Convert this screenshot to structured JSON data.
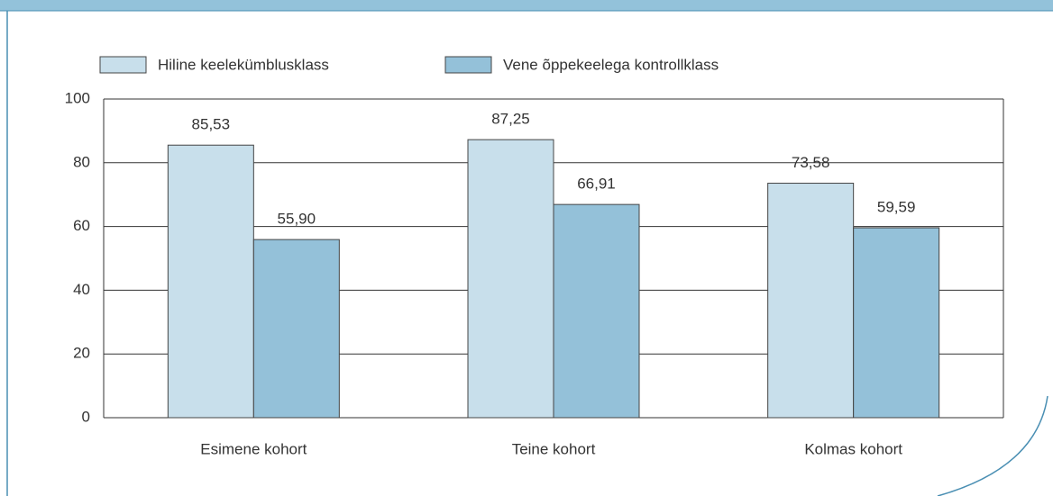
{
  "chart_data": {
    "type": "bar",
    "categories": [
      "Esimene kohort",
      "Teine kohort",
      "Kolmas kohort"
    ],
    "series": [
      {
        "name": "Hiline keelekümblusklass",
        "color": "#c8dfeb",
        "values": [
          85.53,
          87.25,
          73.58
        ],
        "value_labels": [
          "85,53",
          "87,25",
          "73,58"
        ]
      },
      {
        "name": "Vene õppekeelega kontrollklass",
        "color": "#94c1d9",
        "values": [
          55.9,
          66.91,
          59.59
        ],
        "value_labels": [
          "55,90",
          "66,91",
          "59,59"
        ]
      }
    ],
    "ylim": [
      0,
      100
    ],
    "yticks": [
      0,
      20,
      40,
      60,
      80,
      100
    ],
    "grid": true
  }
}
